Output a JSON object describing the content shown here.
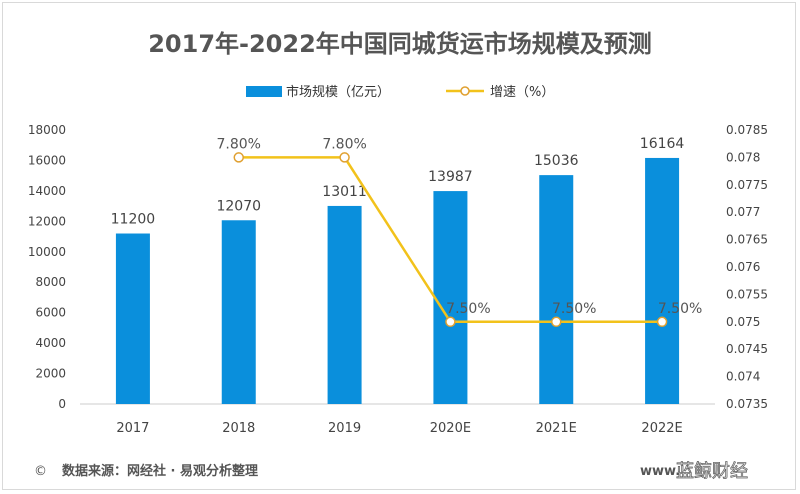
{
  "chart_data": {
    "type": "bar+line",
    "title": "2017年-2022年中国同城货运市场规模及预测",
    "categories": [
      "2017",
      "2018",
      "2019",
      "2020E",
      "2021E",
      "2022E"
    ],
    "series": [
      {
        "name": "市场规模（亿元）",
        "type": "bar",
        "axis": "left",
        "color": "#0a8fdc",
        "values": [
          11200,
          12070,
          13011,
          13987,
          15036,
          16164
        ],
        "labels": [
          "11200",
          "12070",
          "13011",
          "13987",
          "15036",
          "16164"
        ]
      },
      {
        "name": "增速（%）",
        "type": "line",
        "axis": "right",
        "color": "#f2c21b",
        "values": [
          null,
          0.078,
          0.078,
          0.075,
          0.075,
          0.075
        ],
        "labels": [
          "",
          "7.80%",
          "7.80%",
          "7.50%",
          "7.50%",
          "7.50%"
        ]
      }
    ],
    "y_left": {
      "range": [
        0,
        18000
      ],
      "ticks": [
        "0",
        "2000",
        "4000",
        "6000",
        "8000",
        "10000",
        "12000",
        "14000",
        "16000",
        "18000"
      ]
    },
    "y_right": {
      "range": [
        0.0735,
        0.0785
      ],
      "ticks": [
        "0.0735",
        "0.074",
        "0.0745",
        "0.075",
        "0.0755",
        "0.076",
        "0.0765",
        "0.077",
        "0.0775",
        "0.078",
        "0.0785"
      ]
    },
    "grid": false,
    "legend": "top-center"
  },
  "footer": {
    "copyright_symbol": "©",
    "source": "数据来源：网经社 · 易观分析整理",
    "website": "www.",
    "watermark": "蓝鲸财经"
  }
}
